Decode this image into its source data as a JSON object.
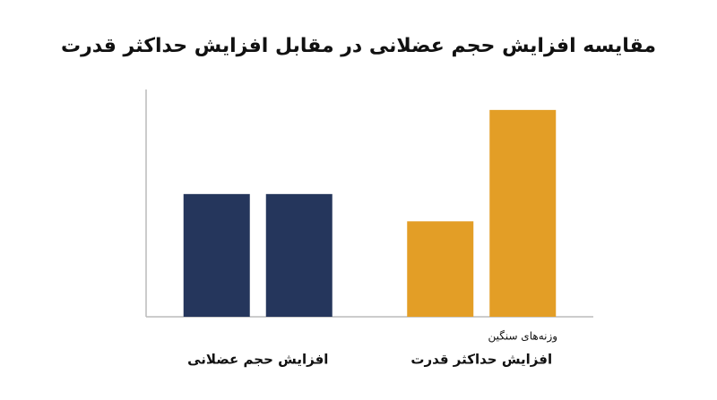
{
  "chart_data": {
    "type": "bar",
    "title": "مقایسه افزایش حجم عضلانی در مقابل افزایش حداکثر قدرت",
    "groups": [
      {
        "label": "افزایش حجم عضلانی",
        "color": "#25365c",
        "values": [
          54,
          54
        ]
      },
      {
        "label": "افزایش حداکثر قدرت",
        "color": "#e39e26",
        "values": [
          42,
          91
        ],
        "annotation": "وزنه‌های سنگین"
      }
    ],
    "ylim": [
      0,
      100
    ]
  }
}
